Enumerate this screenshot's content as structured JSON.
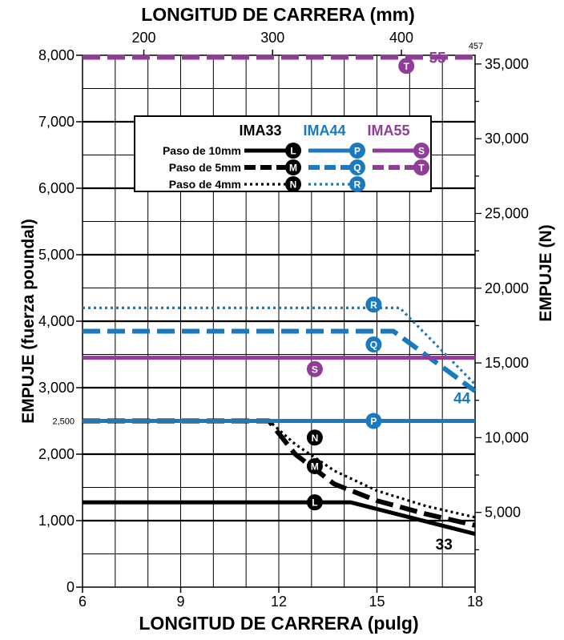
{
  "chart_data": {
    "type": "line",
    "title_top": "LONGITUD DE CARRERA (mm)",
    "xlabel": "LONGITUD DE CARRERA (pulg)",
    "ylabel_left": "EMPUJE (fuerza poundal)",
    "ylabel_right": "EMPUJE (N)",
    "xlim": [
      6,
      18
    ],
    "ylim": [
      0,
      8000
    ],
    "x_ticks": [
      6,
      9,
      12,
      15,
      18
    ],
    "x_tick_labels": [
      "6",
      "9",
      "12",
      "15",
      "18"
    ],
    "y_ticks": [
      0,
      1000,
      2000,
      3000,
      4000,
      5000,
      6000,
      7000,
      8000
    ],
    "y_tick_labels": [
      "0",
      "1,000",
      "2,000",
      "3,000",
      "4,000",
      "5,000",
      "6,000",
      "7,000",
      "8,000"
    ],
    "y_extra_tick": {
      "value": 2500,
      "label": "2,500"
    },
    "mm_ticks": [
      200,
      300,
      400
    ],
    "mm_tick_labels": [
      "200",
      "300",
      "400"
    ],
    "mm_end_label": "457",
    "n_ticks": [
      5000,
      10000,
      15000,
      20000,
      25000,
      30000,
      35000
    ],
    "n_tick_labels": [
      "5,000",
      "10,000",
      "15,000",
      "20,000",
      "25,000",
      "30,000",
      "35,000"
    ],
    "grid": true,
    "legend": {
      "position": "top-center",
      "columns": [
        "IMA33",
        "IMA44",
        "IMA55"
      ],
      "rows": [
        "Paso de 10mm",
        "Paso de 5mm",
        "Paso de 4mm"
      ]
    },
    "series": [
      {
        "badge": "L",
        "model": "IMA33",
        "pitch": "10mm",
        "style": "solid",
        "color": "#000000",
        "x": [
          6,
          14.2,
          18
        ],
        "y": [
          1275,
          1275,
          800
        ],
        "badge_x": 13.1,
        "badge_y": 1275
      },
      {
        "badge": "M",
        "model": "IMA33",
        "pitch": "5mm",
        "style": "dashed",
        "color": "#000000",
        "x": [
          6,
          11.7,
          12.5,
          13.7,
          15,
          16.5,
          18
        ],
        "y": [
          2500,
          2500,
          2000,
          1550,
          1300,
          1100,
          930
        ],
        "badge_x": 13.1,
        "badge_y": 1820
      },
      {
        "badge": "N",
        "model": "IMA33",
        "pitch": "4mm",
        "style": "dotted",
        "color": "#000000",
        "x": [
          6,
          11.7,
          12.5,
          13.7,
          15,
          16.5,
          18
        ],
        "y": [
          2500,
          2500,
          2150,
          1750,
          1450,
          1220,
          1050
        ],
        "badge_x": 13.1,
        "badge_y": 2250
      },
      {
        "badge": "P",
        "model": "IMA44",
        "pitch": "10mm",
        "style": "solid",
        "color": "#1a7abf",
        "x": [
          6,
          18
        ],
        "y": [
          2500,
          2500
        ],
        "badge_x": 14.9,
        "badge_y": 2500
      },
      {
        "badge": "Q",
        "model": "IMA44",
        "pitch": "5mm",
        "style": "dashed",
        "color": "#1a7abf",
        "x": [
          6,
          15.5,
          18
        ],
        "y": [
          3850,
          3850,
          2950
        ],
        "badge_x": 14.9,
        "badge_y": 3650
      },
      {
        "badge": "R",
        "model": "IMA44",
        "pitch": "4mm",
        "style": "dotted",
        "color": "#1a7abf",
        "x": [
          6,
          15.7,
          18
        ],
        "y": [
          4200,
          4200,
          3050
        ],
        "badge_x": 14.9,
        "badge_y": 4250
      },
      {
        "badge": "S",
        "model": "IMA55",
        "pitch": "10mm",
        "style": "solid",
        "color": "#8f3d97",
        "x": [
          6,
          18
        ],
        "y": [
          3450,
          3450
        ],
        "badge_x": 13.1,
        "badge_y": 3280
      },
      {
        "badge": "T",
        "model": "IMA55",
        "pitch": "5mm",
        "style": "dashed",
        "color": "#8f3d97",
        "x": [
          6,
          18
        ],
        "y": [
          7970,
          7970
        ],
        "badge_x": 15.9,
        "badge_y": 7840
      }
    ],
    "end_labels": [
      {
        "text": "33",
        "color": "#000000",
        "x": 17.05,
        "y": 650
      },
      {
        "text": "44",
        "color": "#1a7abf",
        "x": 17.6,
        "y": 2850
      },
      {
        "text": "55",
        "color": "#8f3d97",
        "x": 16.85,
        "y": 7970
      }
    ]
  }
}
